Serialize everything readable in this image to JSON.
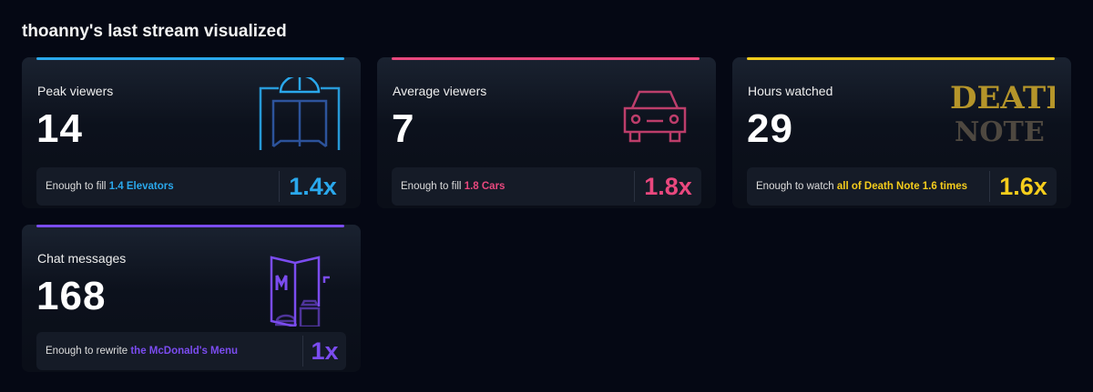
{
  "title": "thoanny's last stream visualized",
  "cards": [
    {
      "label": "Peak viewers",
      "value": "14",
      "prefix": "Enough to fill ",
      "highlight": "1.4 Elevators",
      "multiplier": "1.4x",
      "color": "#2aa8ec",
      "icon": "elevator-icon"
    },
    {
      "label": "Average viewers",
      "value": "7",
      "prefix": "Enough to fill ",
      "highlight": "1.8 Cars",
      "multiplier": "1.8x",
      "color": "#e9487e",
      "icon": "car-icon"
    },
    {
      "label": "Hours watched",
      "value": "29",
      "prefix": "Enough to watch ",
      "highlight": "all of Death Note 1.6 times",
      "multiplier": "1.6x",
      "color": "#f5cd1c",
      "icon": "death-note-logo",
      "logo_text": "DEATH NOTE"
    },
    {
      "label": "Chat messages",
      "value": "168",
      "prefix": "Enough to rewrite ",
      "highlight": "the McDonald's Menu",
      "multiplier": "1x",
      "color": "#7b4cf0",
      "icon": "mcdonalds-menu-icon"
    }
  ]
}
